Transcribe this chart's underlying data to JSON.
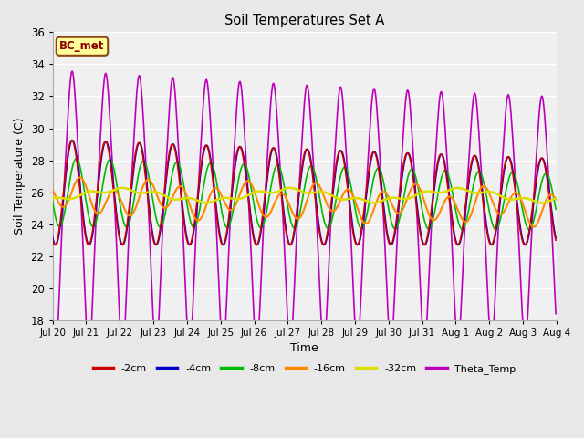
{
  "title": "Soil Temperatures Set A",
  "xlabel": "Time",
  "ylabel": "Soil Temperature (C)",
  "ylim": [
    18,
    36
  ],
  "annotation_text": "BC_met",
  "annotation_bg": "#ffff99",
  "annotation_border": "#8B4513",
  "legend_entries": [
    "-2cm",
    "-4cm",
    "-8cm",
    "-16cm",
    "-32cm",
    "Theta_Temp"
  ],
  "colors": {
    "-2cm": "#cc0000",
    "-4cm": "#0000cc",
    "-8cm": "#00bb00",
    "-16cm": "#ff8800",
    "-32cm": "#dddd00",
    "Theta_Temp": "#bb00bb"
  },
  "bg_color": "#e8e8e8",
  "plot_bg": "#f0f0f0",
  "grid_color": "#ffffff",
  "xtick_labels": [
    "Jul 20",
    "Jul 21",
    "Jul 22",
    "Jul 23",
    "Jul 24",
    "Jul 25",
    "Jul 26",
    "Jul 27",
    "Jul 28",
    "Jul 29",
    "Jul 30",
    "Jul 31",
    "Aug 1",
    "Aug 2",
    "Aug 3",
    "Aug 4"
  ],
  "ytick_values": [
    18,
    20,
    22,
    24,
    26,
    28,
    30,
    32,
    34,
    36
  ]
}
